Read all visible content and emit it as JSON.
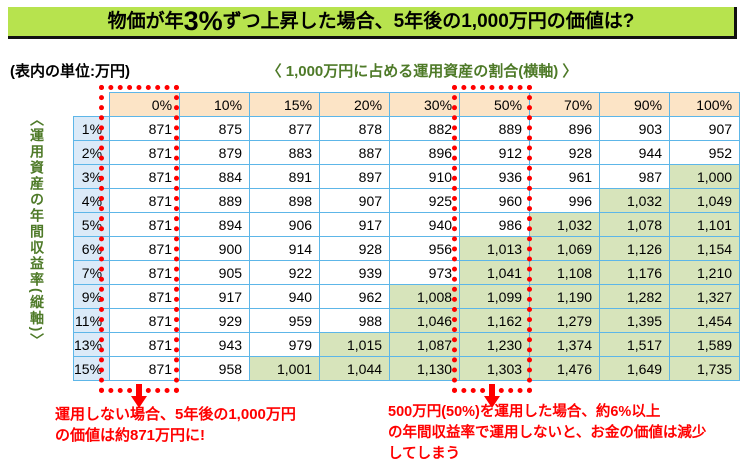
{
  "title": {
    "part1": "物価が年",
    "big": "3%",
    "part2": "ずつ上昇した場合、5年後の1,000万円の価値は?"
  },
  "unit_note": "(表内の単位:万円)",
  "axis": {
    "horizontal": "〈 1,000万円に占める運用資産の割合(横軸) 〉",
    "vertical": "〈運用資産の年間収益率(縦軸)〉"
  },
  "chart_data": {
    "type": "table",
    "title": "物価が年3%ずつ上昇した場合、5年後の1,000万円の価値は?",
    "unit": "万円",
    "xlabel": "1,000万円に占める運用資産の割合(横軸)",
    "ylabel": "運用資産の年間収益率(縦軸)",
    "columns": [
      "0%",
      "10%",
      "15%",
      "20%",
      "30%",
      "50%",
      "70%",
      "90%",
      "100%"
    ],
    "rows": [
      {
        "rate": "1%",
        "values": [
          871,
          875,
          877,
          878,
          882,
          889,
          896,
          903,
          907
        ]
      },
      {
        "rate": "2%",
        "values": [
          871,
          879,
          883,
          887,
          896,
          912,
          928,
          944,
          952
        ]
      },
      {
        "rate": "3%",
        "values": [
          871,
          884,
          891,
          897,
          910,
          936,
          961,
          987,
          1000
        ]
      },
      {
        "rate": "4%",
        "values": [
          871,
          889,
          898,
          907,
          925,
          960,
          996,
          1032,
          1049
        ]
      },
      {
        "rate": "5%",
        "values": [
          871,
          894,
          906,
          917,
          940,
          986,
          1032,
          1078,
          1101
        ]
      },
      {
        "rate": "6%",
        "values": [
          871,
          900,
          914,
          928,
          956,
          1013,
          1069,
          1126,
          1154
        ]
      },
      {
        "rate": "7%",
        "values": [
          871,
          905,
          922,
          939,
          973,
          1041,
          1108,
          1176,
          1210
        ]
      },
      {
        "rate": "9%",
        "values": [
          871,
          917,
          940,
          962,
          1008,
          1099,
          1190,
          1282,
          1327
        ]
      },
      {
        "rate": "11%",
        "values": [
          871,
          929,
          959,
          988,
          1046,
          1162,
          1279,
          1395,
          1454
        ]
      },
      {
        "rate": "13%",
        "values": [
          871,
          943,
          979,
          1015,
          1087,
          1230,
          1374,
          1517,
          1589
        ]
      },
      {
        "rate": "15%",
        "values": [
          871,
          958,
          1001,
          1044,
          1130,
          1303,
          1476,
          1649,
          1735
        ]
      }
    ],
    "highlight_threshold": 1000,
    "highlighted_columns": [
      "0%",
      "50%"
    ]
  },
  "annotations": {
    "left": {
      "lines": [
        "運用しない場合、5年後の1,000万円",
        "の価値は約871万円に!"
      ]
    },
    "right": {
      "lines": [
        "500万円(50%)を運用した場合、約6%以上",
        "の年間収益率で運用しないと、お金の価値は減少",
        "してしまう"
      ]
    }
  },
  "colors": {
    "title_background": "#b7e34e",
    "header_fill": "#fce4c6",
    "row_header_fill": "#dbeaf8",
    "highlight_fill": "#d7e4bb",
    "grid_border": "#5db6e8",
    "axis_label_green": "#4e7a28",
    "annotation_red": "#ff0000"
  }
}
